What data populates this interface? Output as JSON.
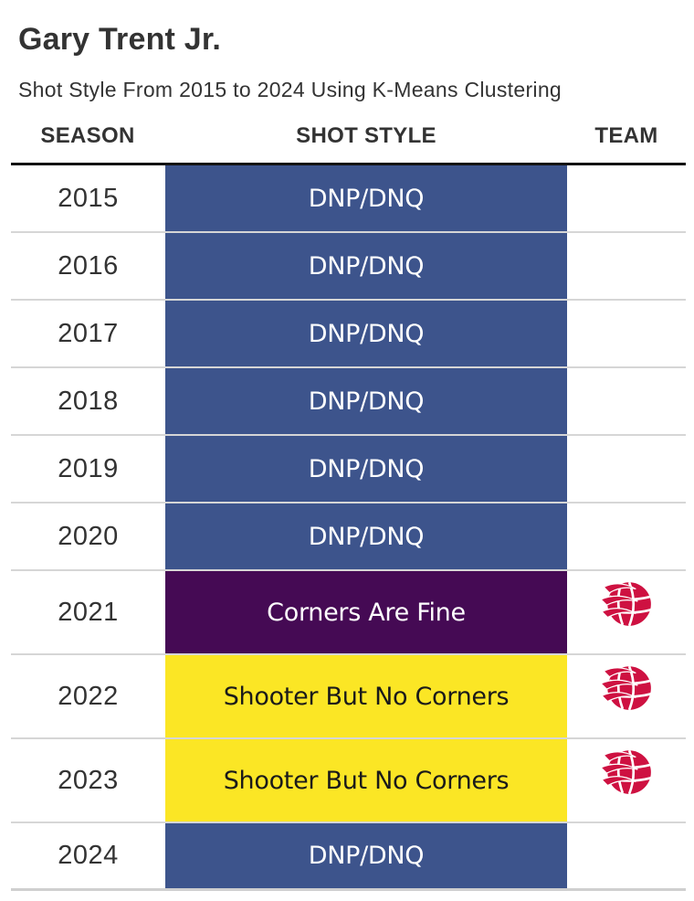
{
  "title": "Gary Trent Jr.",
  "subtitle": "Shot Style From 2015 to 2024 Using K-Means Clustering",
  "columns": {
    "season": "SEASON",
    "style": "SHOT STYLE",
    "team": "TEAM"
  },
  "colors": {
    "DNP/DNQ": "#3d548c",
    "Corners Are Fine": "#450a54",
    "Shooter But No Corners": "#fbe625",
    "logo_red": "#ce1141"
  },
  "chart_data": {
    "type": "table",
    "columns": [
      "SEASON",
      "SHOT STYLE",
      "TEAM"
    ],
    "rows": [
      {
        "season": "2015",
        "style": "DNP/DNQ",
        "team_icon": ""
      },
      {
        "season": "2016",
        "style": "DNP/DNQ",
        "team_icon": ""
      },
      {
        "season": "2017",
        "style": "DNP/DNQ",
        "team_icon": ""
      },
      {
        "season": "2018",
        "style": "DNP/DNQ",
        "team_icon": ""
      },
      {
        "season": "2019",
        "style": "DNP/DNQ",
        "team_icon": ""
      },
      {
        "season": "2020",
        "style": "DNP/DNQ",
        "team_icon": ""
      },
      {
        "season": "2021",
        "style": "Corners Are Fine",
        "team_icon": "raptors-logo-icon"
      },
      {
        "season": "2022",
        "style": "Shooter But No Corners",
        "team_icon": "raptors-logo-icon"
      },
      {
        "season": "2023",
        "style": "Shooter But No Corners",
        "team_icon": "raptors-logo-icon"
      },
      {
        "season": "2024",
        "style": "DNP/DNQ",
        "team_icon": ""
      }
    ]
  }
}
